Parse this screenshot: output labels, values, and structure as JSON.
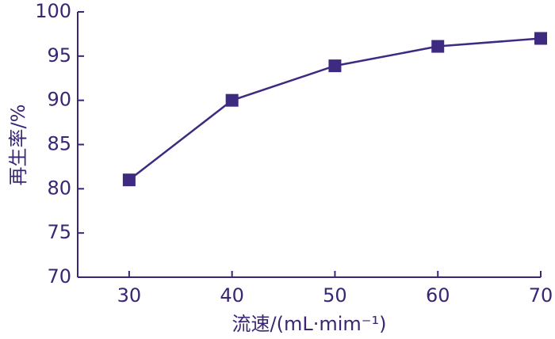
{
  "chart_data": {
    "type": "line",
    "x": [
      30,
      40,
      50,
      60,
      70
    ],
    "series": [
      {
        "name": "再生率",
        "color": "#3f2a82",
        "values": [
          81,
          90,
          93.9,
          96.1,
          97
        ]
      }
    ],
    "xlim": [
      25,
      70
    ],
    "xticks": [
      30,
      40,
      50,
      60,
      70
    ],
    "ylim": [
      70,
      100
    ],
    "yticks": [
      70,
      75,
      80,
      85,
      90,
      95,
      100
    ],
    "xlabel": "流速/(mL·mim⁻¹)",
    "ylabel": "再生率/%",
    "marker": "square",
    "grid": false
  }
}
